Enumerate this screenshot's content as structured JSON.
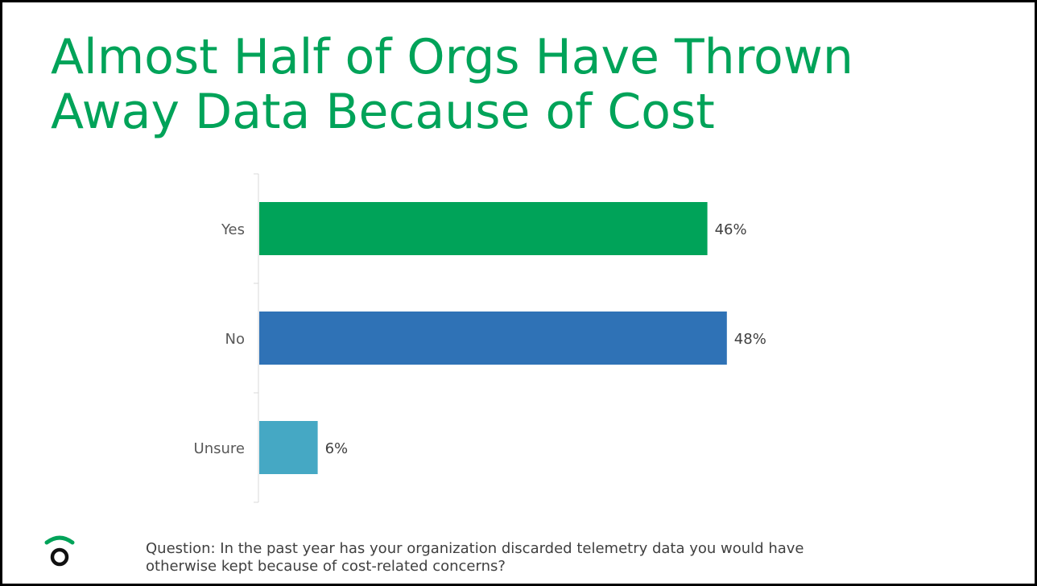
{
  "title": {
    "line1": "Almost Half of Orgs Have Thrown",
    "line2": "Away Data Because of Cost"
  },
  "chart_data": {
    "type": "bar",
    "orientation": "horizontal",
    "categories": [
      "Yes",
      "No",
      "Unsure"
    ],
    "values": [
      46,
      48,
      6
    ],
    "data_labels": [
      "46%",
      "48%",
      "6%"
    ],
    "colors": [
      "#00a359",
      "#2f72b6",
      "#45a8c4"
    ],
    "xlim": [
      0,
      75
    ],
    "grid": false,
    "title": "",
    "xlabel": "",
    "ylabel": ""
  },
  "footer": {
    "question_line1": "Question: In the past year has your organization discarded telemetry data you would have",
    "question_line2": "otherwise kept because of cost-related concerns?",
    "logo_icon": "signal-logo-icon",
    "accent_color": "#00a359"
  }
}
